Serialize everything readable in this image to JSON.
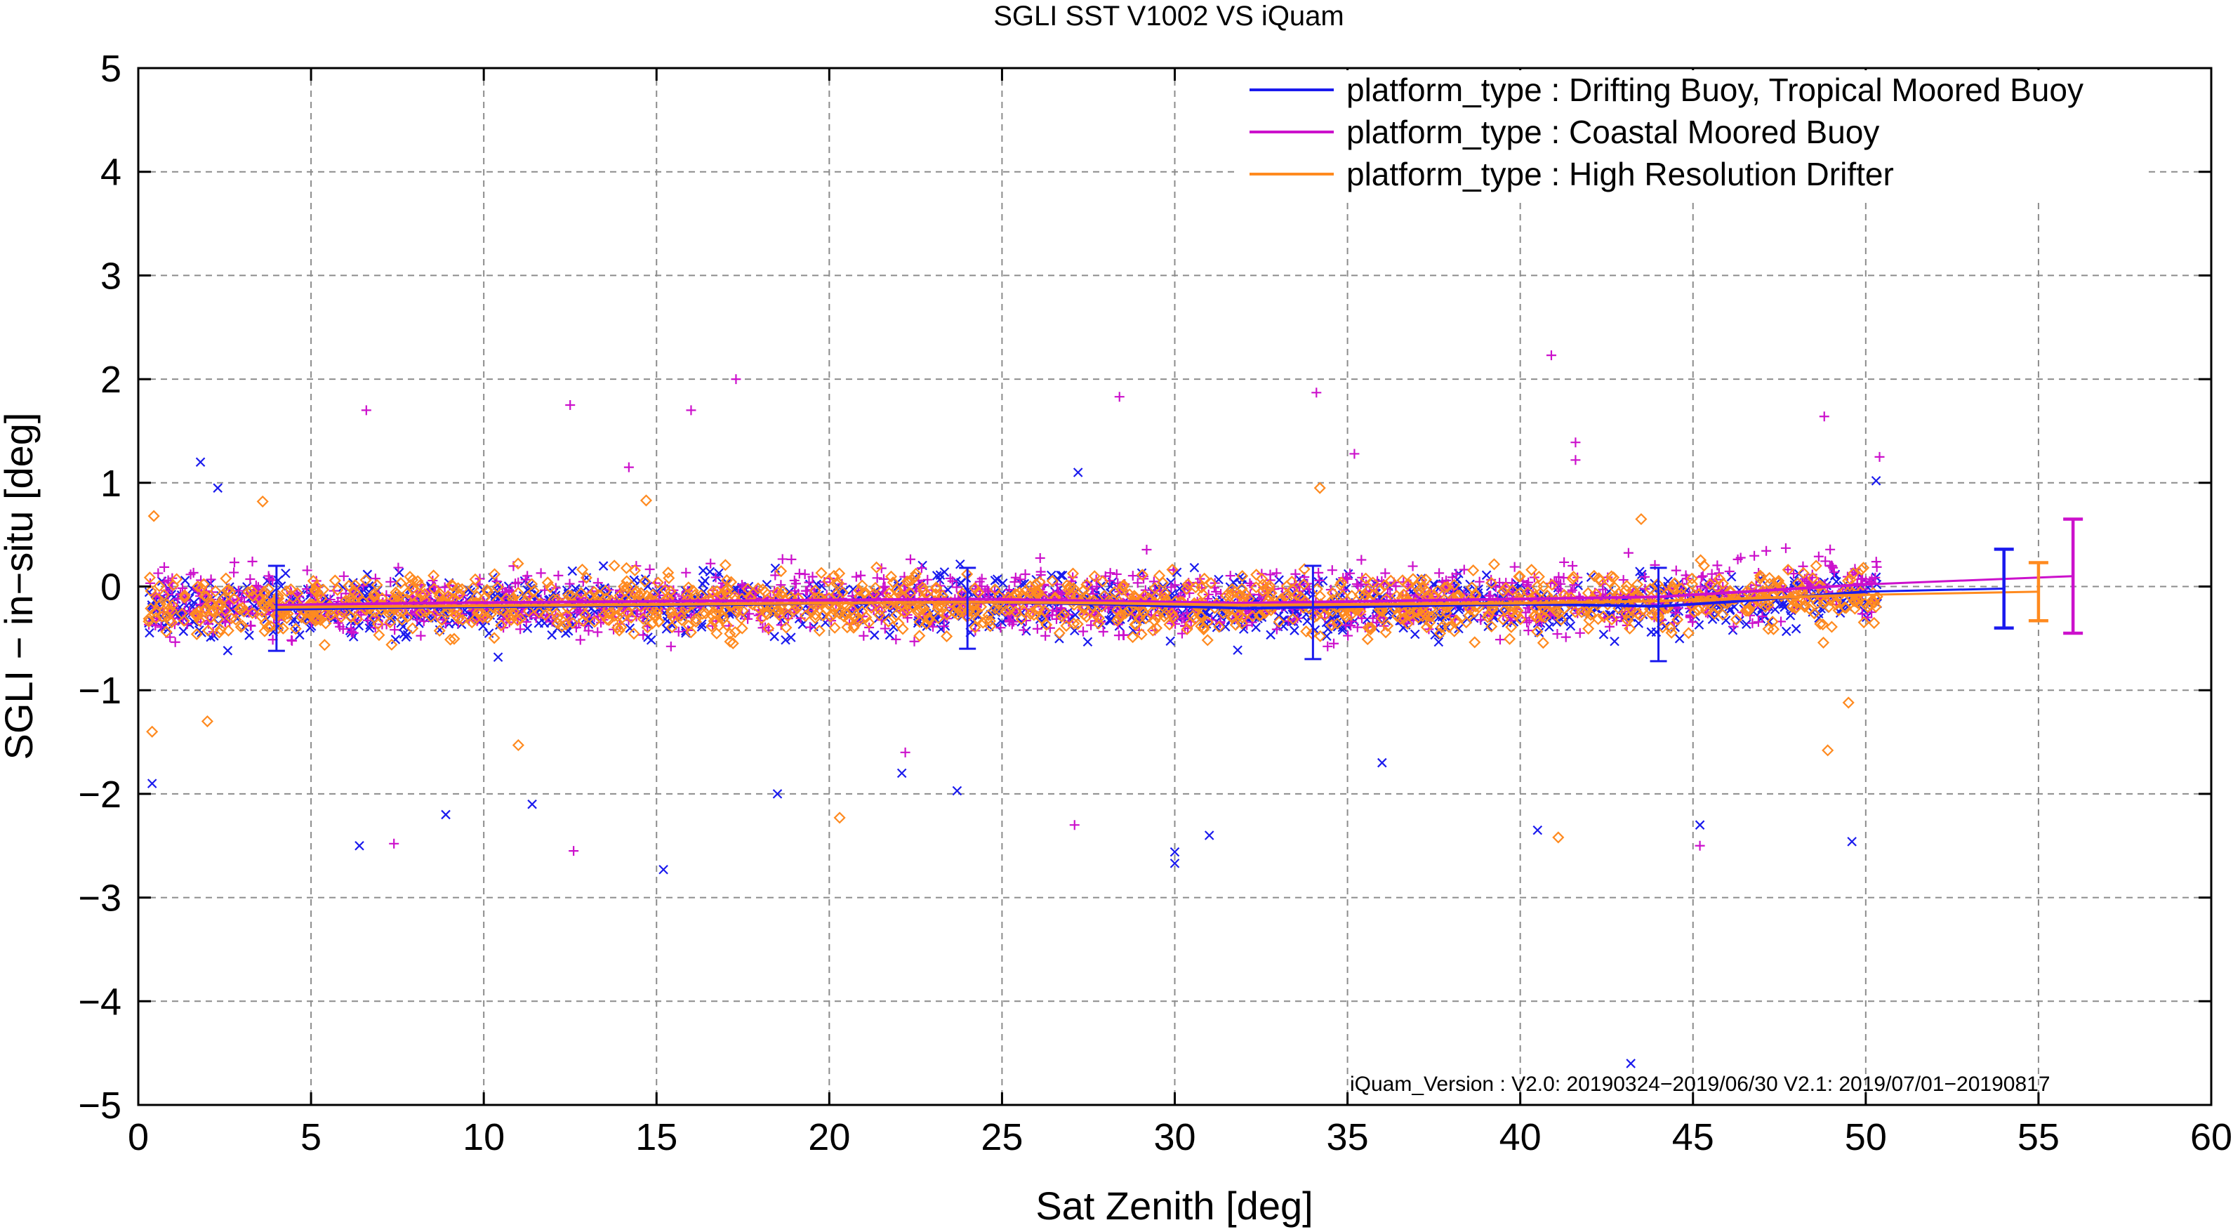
{
  "chart_data": {
    "type": "scatter",
    "title": "SGLI SST V1002 VS iQuam",
    "xlabel": "Sat Zenith [deg]",
    "ylabel": "SGLI − in−situ [deg]",
    "xlim": [
      0,
      60
    ],
    "ylim": [
      -5,
      5
    ],
    "x_ticks": [
      0,
      5,
      10,
      15,
      20,
      25,
      30,
      35,
      40,
      45,
      50,
      55,
      60
    ],
    "y_ticks": [
      -5,
      -4,
      -3,
      -2,
      -1,
      0,
      1,
      2,
      3,
      4,
      5
    ],
    "x_tick_labels": [
      "0",
      "5",
      "10",
      "15",
      "20",
      "25",
      "30",
      "35",
      "40",
      "45",
      "50",
      "55",
      "60"
    ],
    "y_tick_labels": [
      "−5",
      "−4",
      "−3",
      "−2",
      "−1",
      "0",
      "1",
      "2",
      "3",
      "4",
      "5"
    ],
    "grid": true,
    "legend_position": "top-right",
    "annotation": "iQuam_Version :  V2.0: 20190324−2019/06/30 V2.1: 2019/07/01−20190817",
    "series": [
      {
        "name": "platform_type : Drifting Buoy, Tropical Moored Buoy",
        "color": "#1a1aee",
        "marker": "x",
        "mean_x": [
          4,
          8,
          12,
          16,
          20,
          24,
          28,
          32,
          36,
          40,
          44,
          46,
          48,
          50
        ],
        "mean_y": [
          -0.22,
          -0.2,
          -0.19,
          -0.18,
          -0.16,
          -0.15,
          -0.17,
          -0.21,
          -0.19,
          -0.17,
          -0.19,
          -0.15,
          -0.1,
          -0.05
        ],
        "summary": {
          "x": 54,
          "mean": -0.02,
          "std_low": -0.4,
          "std_high": 0.36
        },
        "outliers": [
          [
            0.4,
            -1.9
          ],
          [
            1.8,
            1.2
          ],
          [
            6.4,
            -2.5
          ],
          [
            8.9,
            -2.2
          ],
          [
            11.4,
            -2.1
          ],
          [
            15.2,
            -2.73
          ],
          [
            18.5,
            -2.0
          ],
          [
            22.1,
            -1.8
          ],
          [
            23.7,
            -1.97
          ],
          [
            30,
            -2.56
          ],
          [
            30,
            -2.67
          ],
          [
            31,
            -2.4
          ],
          [
            36,
            -1.7
          ],
          [
            40.5,
            -2.35
          ],
          [
            43.2,
            -4.6
          ],
          [
            45.2,
            -2.3
          ],
          [
            49.6,
            -2.46
          ],
          [
            50.3,
            1.02
          ],
          [
            27.2,
            1.1
          ],
          [
            2.3,
            0.95
          ]
        ]
      },
      {
        "name": "platform_type : Coastal Moored Buoy",
        "color": "#cc11cc",
        "marker": "+",
        "mean_x": [
          4,
          8,
          12,
          16,
          20,
          24,
          28,
          32,
          36,
          40,
          44,
          46,
          48,
          50
        ],
        "mean_y": [
          -0.18,
          -0.16,
          -0.15,
          -0.14,
          -0.13,
          -0.12,
          -0.14,
          -0.16,
          -0.14,
          -0.12,
          -0.1,
          -0.06,
          -0.02,
          0.02
        ],
        "summary": {
          "x": 56,
          "mean": 0.1,
          "std_low": -0.45,
          "std_high": 0.65
        },
        "outliers": [
          [
            6.6,
            1.7
          ],
          [
            12.5,
            1.75
          ],
          [
            12.6,
            -2.55
          ],
          [
            16,
            1.7
          ],
          [
            17.3,
            2.0
          ],
          [
            28.4,
            1.83
          ],
          [
            27.1,
            -2.3
          ],
          [
            34.1,
            1.87
          ],
          [
            35.2,
            1.28
          ],
          [
            40.9,
            2.23
          ],
          [
            41.6,
            1.39
          ],
          [
            41.6,
            1.22
          ],
          [
            45.2,
            -2.5
          ],
          [
            48.8,
            1.64
          ],
          [
            7.4,
            -2.48
          ],
          [
            50.4,
            1.25
          ],
          [
            14.2,
            1.15
          ],
          [
            22.2,
            -1.6
          ]
        ]
      },
      {
        "name": "platform_type : High Resolution Drifter",
        "color": "#ff8a1f",
        "marker": "diamond",
        "mean_x": [
          4,
          8,
          12,
          16,
          20,
          24,
          28,
          32,
          36,
          40,
          44,
          46,
          48,
          50
        ],
        "mean_y": [
          -0.2,
          -0.19,
          -0.18,
          -0.17,
          -0.16,
          -0.15,
          -0.16,
          -0.18,
          -0.17,
          -0.16,
          -0.14,
          -0.12,
          -0.1,
          -0.08
        ],
        "summary": {
          "x": 55,
          "mean": -0.05,
          "std_low": -0.33,
          "std_high": 0.23
        },
        "outliers": [
          [
            0.4,
            -1.4
          ],
          [
            0.45,
            0.68
          ],
          [
            14.7,
            0.83
          ],
          [
            11,
            -1.53
          ],
          [
            20.3,
            -2.23
          ],
          [
            41.1,
            -2.42
          ],
          [
            43.5,
            0.65
          ],
          [
            48.9,
            -1.58
          ],
          [
            49.5,
            -1.12
          ],
          [
            34.2,
            0.95
          ],
          [
            2,
            -1.3
          ],
          [
            3.6,
            0.82
          ]
        ]
      }
    ]
  }
}
